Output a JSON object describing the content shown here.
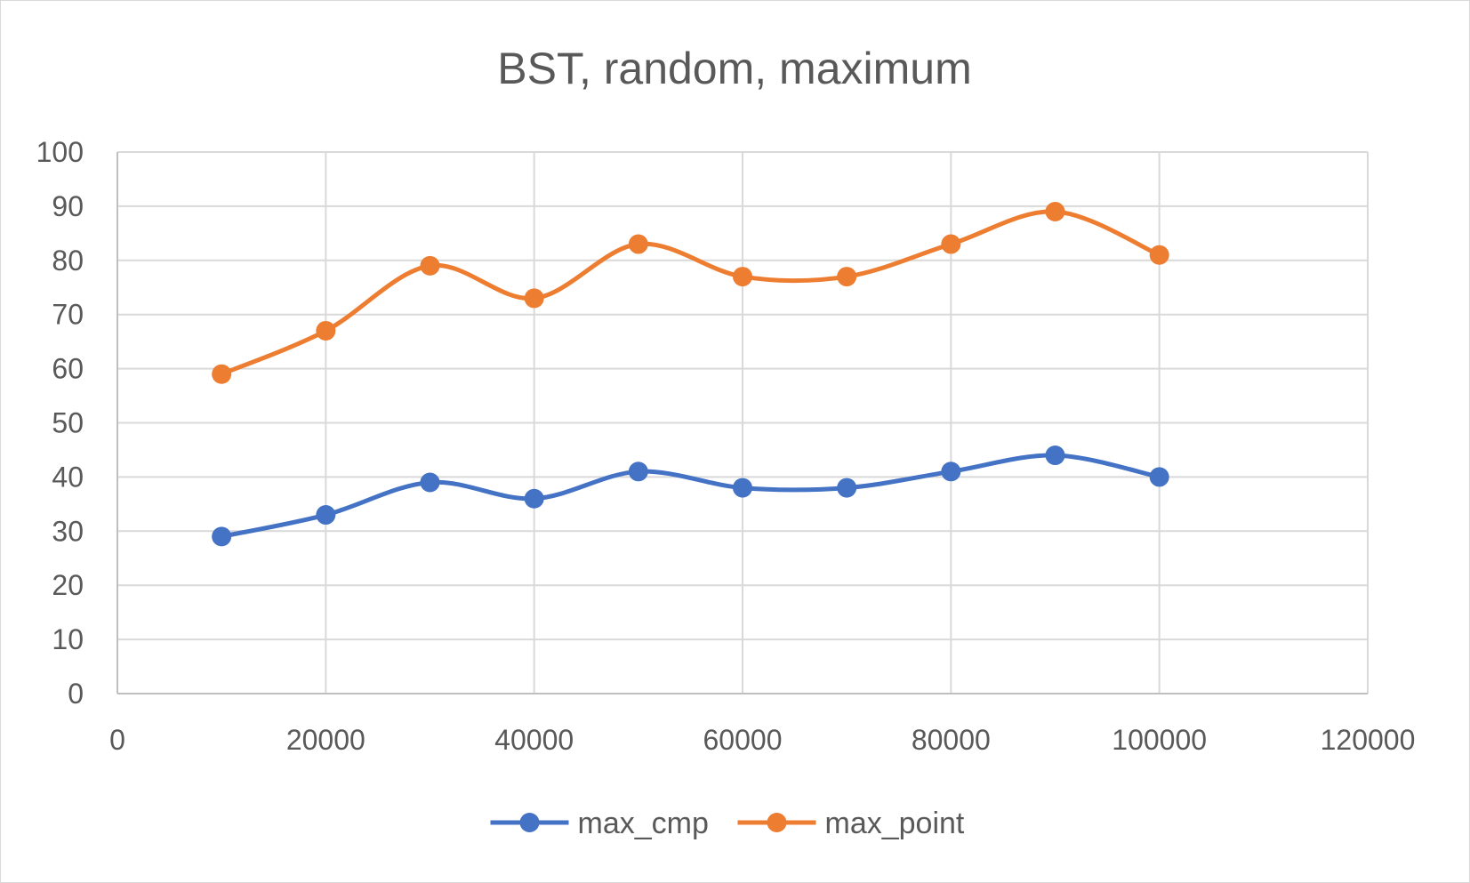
{
  "chart_data": {
    "type": "scatter",
    "title": "BST, random, maximum",
    "xlabel": "",
    "ylabel": "",
    "xlim": [
      0,
      120000
    ],
    "ylim": [
      0,
      100
    ],
    "x_ticks": [
      0,
      20000,
      40000,
      60000,
      80000,
      100000,
      120000
    ],
    "y_ticks": [
      0,
      10,
      20,
      30,
      40,
      50,
      60,
      70,
      80,
      90,
      100
    ],
    "x_tick_labels": [
      "0",
      "20000",
      "40000",
      "60000",
      "80000",
      "100000",
      "120000"
    ],
    "y_tick_labels": [
      "0",
      "10",
      "20",
      "30",
      "40",
      "50",
      "60",
      "70",
      "80",
      "90",
      "100"
    ],
    "grid": true,
    "smooth_lines": true,
    "legend_position": "bottom",
    "x": [
      10000,
      20000,
      30000,
      40000,
      50000,
      60000,
      70000,
      80000,
      90000,
      100000
    ],
    "series": [
      {
        "name": "max_cmp",
        "color": "#4472C4",
        "values": [
          29,
          33,
          39,
          36,
          41,
          38,
          38,
          41,
          44,
          40
        ]
      },
      {
        "name": "max_point",
        "color": "#ED7D31",
        "values": [
          59,
          67,
          79,
          73,
          83,
          77,
          77,
          83,
          89,
          81
        ]
      }
    ]
  }
}
